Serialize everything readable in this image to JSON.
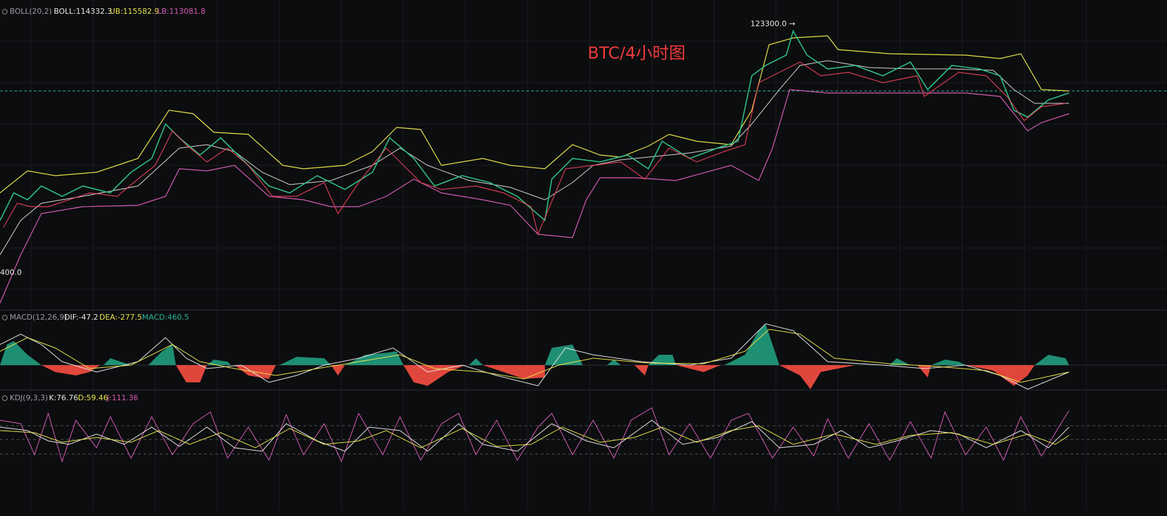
{
  "title": "BTC/4小时图",
  "price_panel": {
    "indicator": "BOLL(20,2)",
    "boll": "BOLL:114332.3",
    "ub": "UB:115582.9",
    "lb": "LB:113081.8",
    "high_marker": "123300.0 →",
    "low_marker": "400.0"
  },
  "macd_panel": {
    "indicator": "MACD(12,26,9)",
    "dif": "DIF:-47.2",
    "dea": "DEA:-277.5",
    "macd": "MACD:460.5"
  },
  "kdj_panel": {
    "indicator": "KDJ(9,3,3)",
    "k": "K:76.76",
    "d": "D:59.46",
    "j": "J:111.36"
  }
}
